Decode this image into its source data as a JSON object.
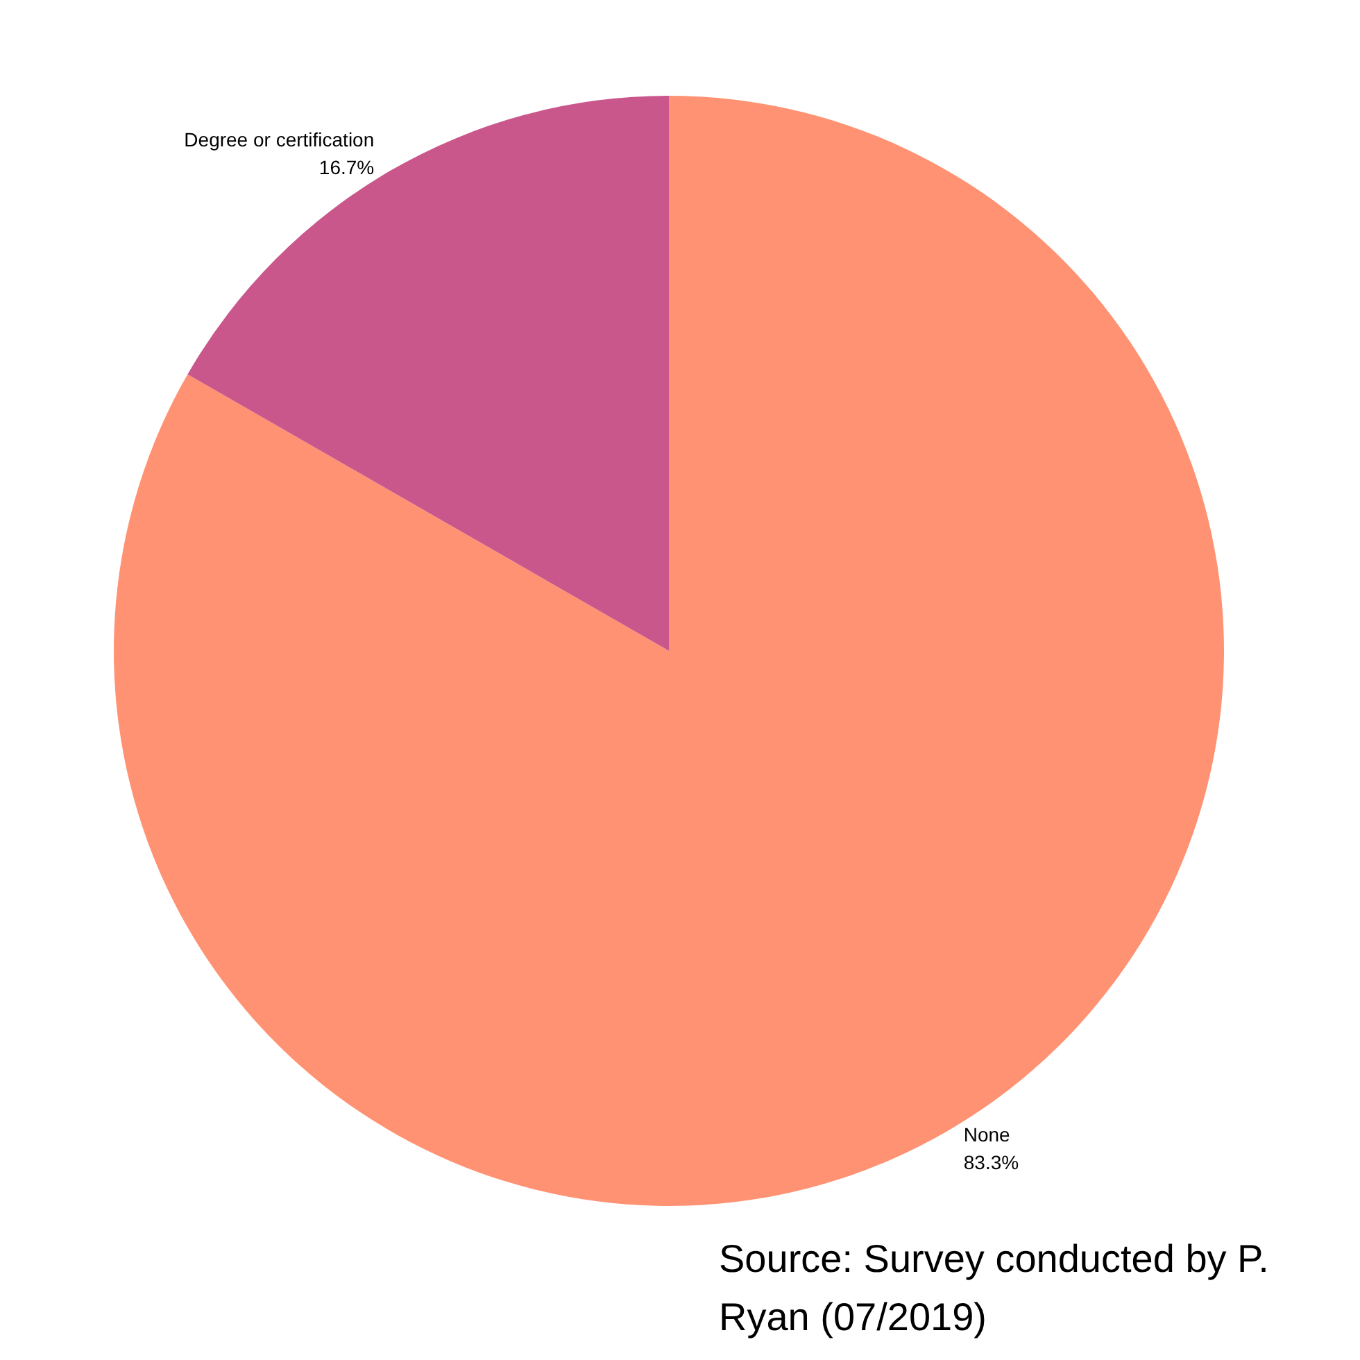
{
  "chart_data": {
    "type": "pie",
    "categories": [
      "None",
      "Degree or certification"
    ],
    "values": [
      83.3,
      16.7
    ],
    "colors": [
      "#ff9273",
      "#c9578b"
    ],
    "value_labels": [
      "83.3%",
      "16.7%"
    ],
    "annotations": [
      "Source: Survey conducted by P. Ryan (07/2019)"
    ]
  }
}
